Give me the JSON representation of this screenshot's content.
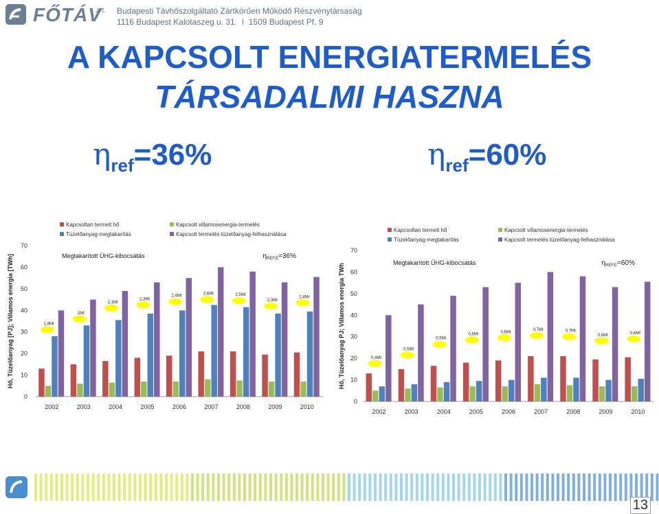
{
  "header": {
    "logo_text": "FŐTÁV",
    "logo_suffix": "zrt.",
    "company": "Budapesti Távhőszolgáltató Zártkörűen Működő Részvénytársaság",
    "address_1": "1116 Budapest Kalotaszeg u. 31.",
    "address_sep": "I",
    "address_2": "1509 Budapest Pf. 9"
  },
  "title_line1": "A KAPCSOLT ENERGIATERMELÉS",
  "title_line2": "TÁRSADALMI HASZNA",
  "eta_left": {
    "symbol": "η",
    "sub": "ref",
    "value": "=36%"
  },
  "eta_right": {
    "symbol": "η",
    "sub": "ref",
    "value": "=60%"
  },
  "page_number": "13",
  "colors": {
    "red": "#c0504d",
    "green": "#9bbb59",
    "blue": "#4f81bd",
    "purple": "#8064a2",
    "marker": "#ffff00"
  },
  "chart_data": [
    {
      "type": "bar",
      "ylabel": "Hő, Tüzelőanyag [PJ]; Villamos energia [TWh]",
      "ylim": [
        0,
        70
      ],
      "yticks": [
        "0",
        "10",
        "20",
        "30",
        "40",
        "50",
        "60",
        "70"
      ],
      "categories": [
        "2002",
        "2003",
        "2004",
        "2005",
        "2006",
        "2007",
        "2008",
        "2009",
        "2010"
      ],
      "legend": [
        "Kapcsoltan termelt hő",
        "Kapcsolt villamosenergia-termelés",
        "Tüzelőanyag-megtakarítás",
        "Kapcsolt termelés tüzelőanyag-felhasználása"
      ],
      "series": [
        {
          "name": "Kapcsoltan termelt hő",
          "color": "red",
          "values": [
            13,
            15,
            16.5,
            18,
            19,
            21,
            21,
            19.5,
            20.5
          ]
        },
        {
          "name": "Kapcsolt villamosenergia-termelés",
          "color": "green",
          "values": [
            5,
            6,
            6.5,
            7,
            7,
            8,
            7.5,
            7,
            7
          ]
        },
        {
          "name": "Tüzelőanyag-megtakarítás",
          "color": "blue",
          "values": [
            28,
            33,
            35.5,
            38.5,
            40,
            42.5,
            41.5,
            38.5,
            39.5
          ]
        },
        {
          "name": "Kapcsolt termelés tüzelőanyag-felhasználása",
          "color": "purple",
          "values": [
            40,
            45,
            49,
            53,
            55,
            60,
            58,
            53,
            55.5
          ]
        }
      ],
      "annotation_title": "Megtakarított ÜHG-kibocsátás",
      "eta_label": {
        "symbol": "η",
        "sub": "REF,E",
        "value": "=36%"
      },
      "savings": [
        {
          "label": "1,8Mt",
          "y": 31
        },
        {
          "label": "2Mt",
          "y": 36
        },
        {
          "label": "2,1Mt",
          "y": 41
        },
        {
          "label": "2,3Mt",
          "y": 42.5
        },
        {
          "label": "2,4Mt",
          "y": 44
        },
        {
          "label": "2,6Mt",
          "y": 45
        },
        {
          "label": "2,5Mt",
          "y": 44.5
        },
        {
          "label": "2,3Mt",
          "y": 42
        },
        {
          "label": "2,4Mt",
          "y": 43.5
        }
      ]
    },
    {
      "type": "bar",
      "ylabel": "Hő, Tüzelőanyag PJ; Villamos energia TWh",
      "ylim": [
        0,
        70
      ],
      "yticks": [
        "0",
        "10",
        "20",
        "30",
        "40",
        "50",
        "60",
        "70"
      ],
      "categories": [
        "2002",
        "2003",
        "2004",
        "2005",
        "2006",
        "2007",
        "2008",
        "2009",
        "2010"
      ],
      "legend": [
        "Kapcsoltan termelt hő",
        "Kapcsolt villamosenergia-termelés",
        "Tüzelőanyag-megtakarítás",
        "Kapcsolt termelés tüzelőanyag-felhasználása"
      ],
      "series": [
        {
          "name": "Kapcsoltan termelt hő",
          "color": "red",
          "values": [
            13,
            15,
            16.5,
            18,
            19,
            21,
            21,
            19.5,
            20.5
          ]
        },
        {
          "name": "Kapcsolt villamosenergia-termelés",
          "color": "green",
          "values": [
            5,
            6,
            6.5,
            7,
            7,
            8,
            7.5,
            7,
            7
          ]
        },
        {
          "name": "Tüzelőanyag-megtakarítás",
          "color": "blue",
          "values": [
            7,
            8,
            9,
            9.5,
            10,
            11,
            11,
            10,
            10.5
          ]
        },
        {
          "name": "Kapcsolt termelés tüzelőanyag-felhasználása",
          "color": "purple",
          "values": [
            40,
            45,
            49,
            53,
            55,
            60,
            58,
            53,
            55.5
          ]
        }
      ],
      "annotation_title": "Megtakarított ÜHG-kibocsátás",
      "eta_label": {
        "symbol": "η",
        "sub": "REF,E",
        "value": "=60%"
      },
      "savings": [
        {
          "label": "0,4Mt",
          "y": 17.5
        },
        {
          "label": "0,5Mt",
          "y": 21.5
        },
        {
          "label": "0,5Mt",
          "y": 26.5
        },
        {
          "label": "0,6Mt",
          "y": 28.5
        },
        {
          "label": "0,6Mt",
          "y": 29.5
        },
        {
          "label": "0,7Mt",
          "y": 30.5
        },
        {
          "label": "0,7Mt",
          "y": 30
        },
        {
          "label": "0,6Mt",
          "y": 28
        },
        {
          "label": "0,6Mt",
          "y": 29
        }
      ]
    }
  ]
}
